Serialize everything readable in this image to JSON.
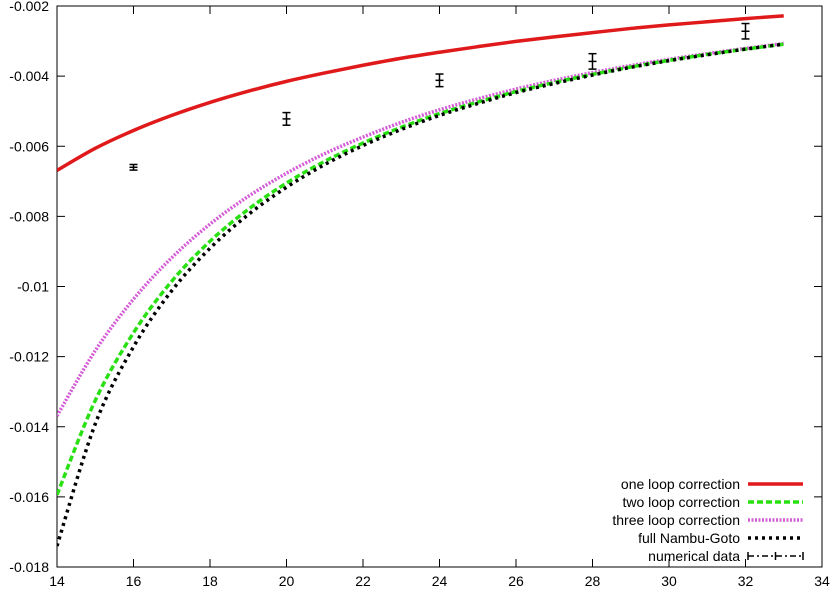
{
  "chart_data": {
    "type": "line",
    "title": "",
    "xlabel": "",
    "ylabel": "",
    "xlim": [
      14,
      34
    ],
    "ylim": [
      -0.018,
      -0.002
    ],
    "x_ticks": [
      14,
      16,
      18,
      20,
      22,
      24,
      26,
      28,
      30,
      32,
      34
    ],
    "x_tick_labels": [
      "14",
      "16",
      "18",
      "20",
      "22",
      "24",
      "26",
      "28",
      "30",
      "32",
      "34"
    ],
    "y_ticks": [
      -0.018,
      -0.016,
      -0.014,
      -0.012,
      -0.01,
      -0.008,
      -0.006,
      -0.004,
      -0.002
    ],
    "y_tick_labels": [
      "-0.018",
      "-0.016",
      "-0.014",
      "-0.012",
      "-0.01",
      "-0.008",
      "-0.006",
      "-0.004",
      "-0.002"
    ],
    "grid": false,
    "legend_position": "bottom-right",
    "series": [
      {
        "name": "one loop correction",
        "color": "#e0191b",
        "style": "solid",
        "x": [
          14,
          15,
          16,
          17,
          18,
          19,
          20,
          21,
          22,
          23,
          24,
          25,
          26,
          27,
          28,
          29,
          30,
          31,
          32,
          33
        ],
        "y": [
          -0.00669,
          -0.00606,
          -0.00555,
          -0.00512,
          -0.00475,
          -0.00443,
          -0.00415,
          -0.00391,
          -0.00369,
          -0.00349,
          -0.00332,
          -0.00316,
          -0.00301,
          -0.00288,
          -0.00276,
          -0.00264,
          -0.00254,
          -0.00245,
          -0.00236,
          -0.00228
        ]
      },
      {
        "name": "two loop correction",
        "color": "#29e012",
        "style": "dashed",
        "x": [
          14,
          15,
          16,
          17,
          18,
          19,
          20,
          21,
          22,
          23,
          24,
          25,
          26,
          27,
          28,
          29,
          30,
          31,
          32,
          33
        ],
        "y": [
          -0.01594,
          -0.01325,
          -0.01132,
          -0.00985,
          -0.00871,
          -0.0078,
          -0.00705,
          -0.00643,
          -0.00591,
          -0.00546,
          -0.00507,
          -0.00474,
          -0.00444,
          -0.00418,
          -0.00395,
          -0.00374,
          -0.00355,
          -0.00338,
          -0.00323,
          -0.00309
        ]
      },
      {
        "name": "three loop correction",
        "color": "#d45cd6",
        "style": "dotted",
        "x": [
          14,
          15,
          16,
          17,
          18,
          19,
          20,
          21,
          22,
          23,
          24,
          25,
          26,
          27,
          28,
          29,
          30,
          31,
          32,
          33
        ],
        "y": [
          -0.01369,
          -0.01183,
          -0.01036,
          -0.00918,
          -0.00822,
          -0.00743,
          -0.00677,
          -0.00621,
          -0.00574,
          -0.00532,
          -0.00496,
          -0.00465,
          -0.00437,
          -0.00412,
          -0.0039,
          -0.0037,
          -0.00352,
          -0.00336,
          -0.00321,
          -0.00307
        ]
      },
      {
        "name": "full Nambu-Goto",
        "color": "#000000",
        "style": "dotted",
        "x": [
          14,
          15,
          16,
          17,
          18,
          19,
          20,
          21,
          22,
          23,
          24,
          25,
          26,
          27,
          28,
          29,
          30,
          31,
          32,
          33
        ],
        "y": [
          -0.0174,
          -0.01392,
          -0.01172,
          -0.01012,
          -0.00891,
          -0.00795,
          -0.00717,
          -0.00652,
          -0.00598,
          -0.00552,
          -0.00512,
          -0.00478,
          -0.00447,
          -0.00421,
          -0.00397,
          -0.00375,
          -0.00356,
          -0.00339,
          -0.00323,
          -0.00309
        ]
      },
      {
        "name": "numerical data",
        "color": "#000000",
        "style": "errorbars",
        "x": [
          16,
          20,
          24,
          28,
          32
        ],
        "y": [
          -0.0066,
          -0.00522,
          -0.00412,
          -0.00358,
          -0.00272
        ],
        "yerr": [
          8e-05,
          0.00018,
          0.00018,
          0.00022,
          0.00022
        ]
      }
    ]
  }
}
